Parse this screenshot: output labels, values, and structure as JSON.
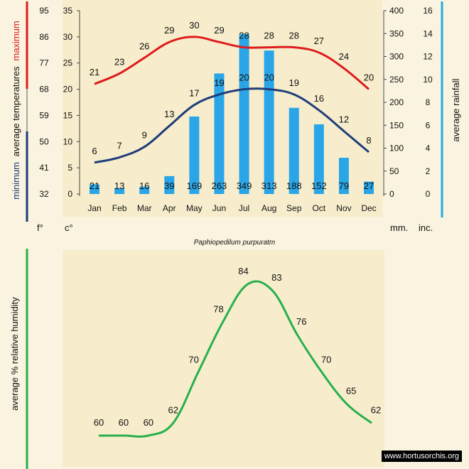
{
  "caption": "Paphiopedilum purpuratm",
  "watermark": "www.hortusorchis.org",
  "colors": {
    "maximum": "#dd1c1c",
    "minimum": "#1f3d7a",
    "rain_bar": "#2aa6e8",
    "rainfall_axis": "#22aee0",
    "humidity": "#27b04b",
    "plot_bg": "#f7edcc"
  },
  "chart_data": [
    {
      "type": "bar+line",
      "categories": [
        "Jan",
        "Feb",
        "Mar",
        "Apr",
        "May",
        "Jun",
        "Jul",
        "Aug",
        "Sep",
        "Oct",
        "Nov",
        "Dec"
      ],
      "series": [
        {
          "name": "maximum",
          "type": "line",
          "values": [
            21,
            23,
            26,
            29,
            30,
            29,
            28,
            28,
            28,
            27,
            24,
            20
          ]
        },
        {
          "name": "minimum",
          "type": "line",
          "values": [
            6,
            7,
            9,
            13,
            17,
            19,
            20,
            20,
            19,
            16,
            12,
            8
          ]
        },
        {
          "name": "rainfall",
          "type": "bar",
          "values": [
            21,
            13,
            16,
            39,
            169,
            263,
            349,
            313,
            188,
            152,
            79,
            27
          ]
        }
      ],
      "ylabel_left": {
        "prefix": "minimum",
        "middle": "average  temperatures",
        "suffix": "maximum"
      },
      "ylabel_right": "average  rainfall",
      "left_f_ticks": [
        "95",
        "86",
        "77",
        "68",
        "59",
        "50",
        "41",
        "32"
      ],
      "left_c_ticks": [
        "35",
        "30",
        "25",
        "20",
        "15",
        "10",
        "5",
        "0"
      ],
      "right_mm_ticks": [
        "400",
        "350",
        "300",
        "250",
        "200",
        "150",
        "100",
        "50",
        "0"
      ],
      "right_in_ticks": [
        "16",
        "14",
        "12",
        "10",
        "8",
        "6",
        "4",
        "2",
        "0"
      ],
      "unit_f": "f°",
      "unit_c": "c°",
      "unit_mm": "mm.",
      "unit_in": "inc.",
      "ylim_c": [
        0,
        35
      ],
      "ylim_mm": [
        0,
        400
      ]
    },
    {
      "type": "line",
      "categories": [
        "Jan",
        "Feb",
        "Mar",
        "Apr",
        "May",
        "Jun",
        "Jul",
        "Aug",
        "Sep",
        "Oct",
        "Nov",
        "Dec"
      ],
      "series": [
        {
          "name": "humidity",
          "values": [
            60,
            60,
            60,
            62,
            70,
            78,
            84,
            83,
            76,
            70,
            65,
            62
          ]
        }
      ],
      "ylabel": "average %  relative humidity"
    }
  ]
}
